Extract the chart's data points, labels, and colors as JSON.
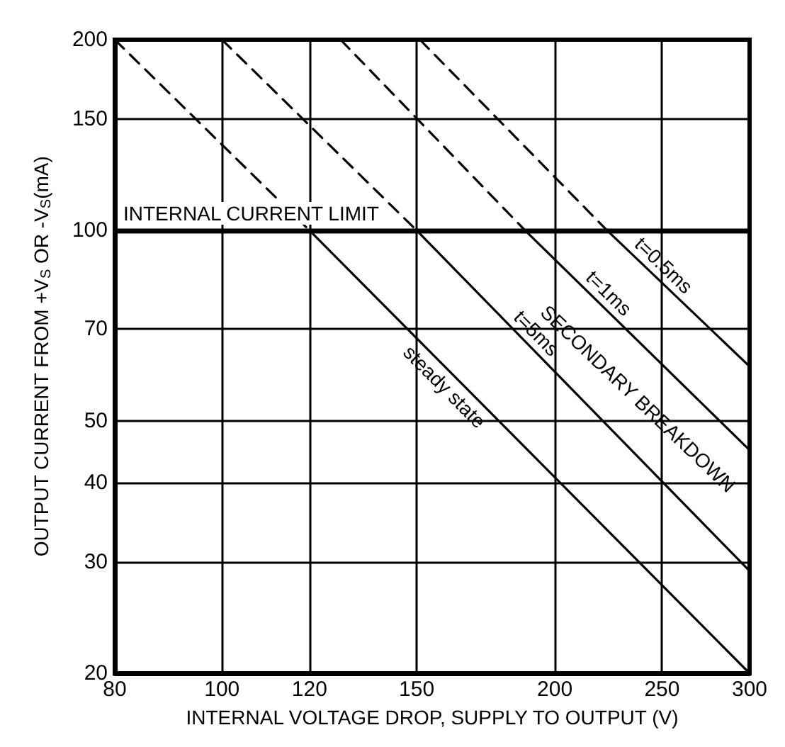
{
  "chart_data": {
    "type": "line",
    "xlabel": "INTERNAL VOLTAGE DROP, SUPPLY TO OUTPUT (V)",
    "ylabel": "OUTPUT CURRENT FROM +V$_{S}$ OR -V$_{S}$(mA)",
    "log": "xy",
    "xlim": [
      80,
      300
    ],
    "ylim": [
      20,
      200
    ],
    "xticks": [
      80,
      100,
      120,
      150,
      200,
      250,
      300
    ],
    "yticks": [
      20,
      30,
      40,
      50,
      70,
      100,
      150,
      200
    ],
    "grid": true,
    "legend": false,
    "marker": "none",
    "series": [
      {
        "name": "steady state",
        "color": "#000000",
        "line_style": "solid",
        "x": [
          120,
          300
        ],
        "values": [
          100,
          20
        ]
      },
      {
        "color": "#000000",
        "line_style": "dashed",
        "x": [
          80,
          120
        ],
        "values": [
          200,
          100
        ]
      },
      {
        "name": "t=5ms",
        "color": "#000000",
        "line_style": "solid",
        "x": [
          150,
          300
        ],
        "values": [
          100,
          29
        ]
      },
      {
        "color": "#000000",
        "line_style": "dashed",
        "x": [
          100,
          150
        ],
        "values": [
          200,
          100
        ]
      },
      {
        "name": "t=1ms",
        "color": "#000000",
        "line_style": "solid",
        "x": [
          188,
          300
        ],
        "values": [
          100,
          45
        ]
      },
      {
        "color": "#000000",
        "line_style": "dashed",
        "x": [
          128,
          188
        ],
        "values": [
          200,
          100
        ]
      },
      {
        "name": "t=0.5ms",
        "color": "#000000",
        "line_style": "solid",
        "x": [
          223,
          300
        ],
        "values": [
          100,
          61
        ]
      },
      {
        "color": "#000000",
        "line_style": "dashed",
        "x": [
          151,
          223
        ],
        "values": [
          200,
          100
        ]
      }
    ],
    "ref_lines": [
      {
        "axis": "y",
        "value": 100,
        "label": "INTERNAL CURRENT LIMIT",
        "color": "#000000",
        "line_style": "solid"
      }
    ],
    "annotations": [
      "SECONDARY BREAKDOWN"
    ]
  }
}
